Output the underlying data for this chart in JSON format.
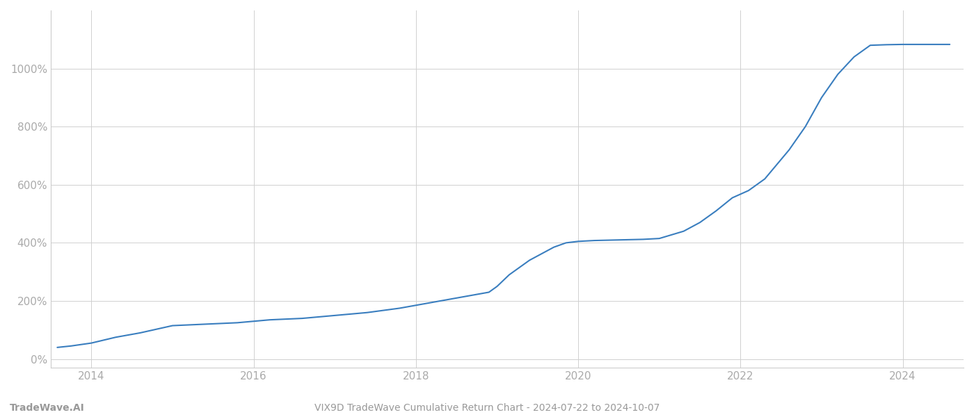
{
  "title": "VIX9D TradeWave Cumulative Return Chart - 2024-07-22 to 2024-10-07",
  "watermark": "TradeWave.AI",
  "line_color": "#3a7ebf",
  "background_color": "#ffffff",
  "grid_color": "#d0d0d0",
  "x_data": [
    2013.58,
    2013.75,
    2014.0,
    2014.3,
    2014.6,
    2015.0,
    2015.4,
    2015.8,
    2016.2,
    2016.6,
    2017.0,
    2017.4,
    2017.8,
    2018.0,
    2018.3,
    2018.6,
    2018.9,
    2019.0,
    2019.15,
    2019.4,
    2019.7,
    2019.85,
    2020.0,
    2020.2,
    2020.5,
    2020.8,
    2021.0,
    2021.3,
    2021.5,
    2021.7,
    2021.9,
    2022.1,
    2022.3,
    2022.6,
    2022.8,
    2023.0,
    2023.2,
    2023.4,
    2023.6,
    2023.8,
    2024.0,
    2024.3,
    2024.58
  ],
  "y_data": [
    40,
    45,
    55,
    75,
    90,
    115,
    120,
    125,
    135,
    140,
    150,
    160,
    175,
    185,
    200,
    215,
    230,
    250,
    290,
    340,
    385,
    400,
    405,
    408,
    410,
    412,
    415,
    440,
    470,
    510,
    555,
    580,
    620,
    720,
    800,
    900,
    980,
    1040,
    1080,
    1082,
    1083,
    1083,
    1083
  ],
  "yticks": [
    0,
    200,
    400,
    600,
    800,
    1000
  ],
  "ylim": [
    -30,
    1200
  ],
  "xlim": [
    2013.5,
    2024.75
  ],
  "xticks": [
    2014,
    2016,
    2018,
    2020,
    2022,
    2024
  ],
  "title_fontsize": 10,
  "tick_fontsize": 11,
  "tick_color": "#aaaaaa",
  "spine_color": "#cccccc"
}
